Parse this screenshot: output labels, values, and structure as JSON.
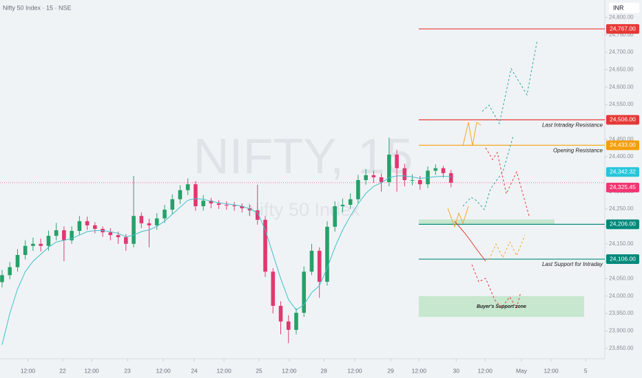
{
  "chart_data": {
    "type": "candlestick",
    "title": "Nifty 50 Index · 15 · NSE",
    "currency": "INR",
    "watermark": "NIFTY, 15",
    "watermark_sub": "Nifty 50 Index",
    "xlim": [
      -0.8,
      233.6
    ],
    "ylim": [
      23820,
      24850
    ],
    "xticks": [
      {
        "value": 10,
        "label": "12:00"
      },
      {
        "value": 23.5,
        "label": "22"
      },
      {
        "value": 34.7,
        "label": "12:00"
      },
      {
        "value": 48.6,
        "label": "23"
      },
      {
        "value": 62.5,
        "label": "12:00"
      },
      {
        "value": 74.5,
        "label": "24"
      },
      {
        "value": 86,
        "label": "12:00"
      },
      {
        "value": 99.6,
        "label": "25"
      },
      {
        "value": 111.3,
        "label": "12:00"
      },
      {
        "value": 124.7,
        "label": "28"
      },
      {
        "value": 136.7,
        "label": "12:00"
      },
      {
        "value": 150.6,
        "label": "29"
      },
      {
        "value": 161.6,
        "label": "12:00"
      },
      {
        "value": 176,
        "label": "30"
      },
      {
        "value": 187.2,
        "label": "12:00"
      },
      {
        "value": 201.3,
        "label": "May"
      },
      {
        "value": 212.8,
        "label": "12:00"
      },
      {
        "value": 226.2,
        "label": "5"
      }
    ],
    "yticks": [
      {
        "value": 23850,
        "label": "23,850.00"
      },
      {
        "value": 23900,
        "label": "23,900.00"
      },
      {
        "value": 23950,
        "label": "23,950.00"
      },
      {
        "value": 24000,
        "label": "24,000.00"
      },
      {
        "value": 24050,
        "label": "24,050.00"
      },
      {
        "value": 24100,
        "label": "24,100.00"
      },
      {
        "value": 24150,
        "label": "24,150.00"
      },
      {
        "value": 24200,
        "label": "24,200.00"
      },
      {
        "value": 24250,
        "label": "24,250.00"
      },
      {
        "value": 24300,
        "label": "24,300.00"
      },
      {
        "value": 24350,
        "label": "24,350.00"
      },
      {
        "value": 24400,
        "label": "24,400.00"
      },
      {
        "value": 24450,
        "label": "24,450.00"
      },
      {
        "value": 24500,
        "label": "24,500.00"
      },
      {
        "value": 24550,
        "label": "24,550.00"
      },
      {
        "value": 24600,
        "label": "24,600.00"
      },
      {
        "value": 24650,
        "label": "24,650.00"
      },
      {
        "value": 24700,
        "label": "24,700.00"
      },
      {
        "value": 24750,
        "label": "24,750.00"
      },
      {
        "value": 24800,
        "label": "24,800.00"
      }
    ],
    "up_color": "#26a169",
    "down_color": "#e0386f",
    "candles": {
      "x": [
        0,
        3,
        6,
        9,
        12,
        15,
        18,
        21,
        24,
        27,
        30,
        33,
        36,
        39,
        42,
        45,
        48,
        51,
        54,
        57,
        60,
        63,
        66,
        69,
        72,
        75,
        78,
        81,
        84,
        87,
        90,
        93,
        96,
        99,
        102,
        105,
        108,
        111,
        114,
        117,
        120,
        123,
        126,
        129,
        132,
        135,
        138,
        141,
        144,
        147,
        150,
        153,
        156,
        159,
        162,
        165,
        168,
        171,
        174
      ],
      "open": [
        24040,
        24060,
        24083,
        24118,
        24144,
        24150,
        24144,
        24173,
        24189,
        24160,
        24187,
        24215,
        24203,
        24193,
        24183,
        24175,
        24169,
        24150,
        24230,
        24209,
        24203,
        24223,
        24248,
        24278,
        24304,
        24321,
        24258,
        24274,
        24266,
        24262,
        24260,
        24258,
        24252,
        24246,
        24219,
        24070,
        23972,
        23927,
        23903,
        23952,
        24070,
        24130,
        24041,
        24199,
        24258,
        24262,
        24278,
        24333,
        24347,
        24341,
        24327,
        24406,
        24367,
        24333,
        24333,
        24321,
        24360,
        24367,
        24353
      ],
      "high": [
        24075,
        24098,
        24135,
        24160,
        24168,
        24165,
        24188,
        24210,
        24200,
        24200,
        24230,
        24228,
        24212,
        24200,
        24195,
        24185,
        24178,
        24345,
        24240,
        24222,
        24238,
        24262,
        24292,
        24318,
        24338,
        24330,
        24290,
        24282,
        24275,
        24272,
        24270,
        24266,
        24262,
        24320,
        24230,
        24080,
        23985,
        23945,
        23965,
        24085,
        24150,
        24140,
        24215,
        24272,
        24280,
        24295,
        24348,
        24365,
        24360,
        24352,
        24455,
        24420,
        24380,
        24350,
        24345,
        24372,
        24378,
        24374,
        24362
      ],
      "low": [
        24025,
        24048,
        24070,
        24105,
        24130,
        24128,
        24130,
        24160,
        24100,
        24150,
        24175,
        24190,
        24180,
        24170,
        24160,
        24150,
        24130,
        24140,
        24195,
        24140,
        24190,
        24210,
        24235,
        24265,
        24290,
        24245,
        24245,
        24252,
        24250,
        24248,
        24245,
        24240,
        24230,
        24205,
        24055,
        23950,
        23890,
        23865,
        23890,
        23940,
        24060,
        23995,
        24030,
        24185,
        24240,
        24250,
        24265,
        24320,
        24325,
        24300,
        24315,
        24300,
        24315,
        24318,
        24305,
        24310,
        24348,
        24340,
        24312
      ],
      "close": [
        24060,
        24083,
        24118,
        24144,
        24150,
        24144,
        24173,
        24189,
        24160,
        24187,
        24215,
        24203,
        24193,
        24183,
        24175,
        24169,
        24150,
        24230,
        24209,
        24203,
        24223,
        24248,
        24278,
        24304,
        24321,
        24258,
        24274,
        24266,
        24262,
        24260,
        24258,
        24252,
        24246,
        24219,
        24070,
        23972,
        23927,
        23903,
        23952,
        24070,
        24130,
        24041,
        24199,
        24258,
        24262,
        24278,
        24333,
        24347,
        24341,
        24327,
        24406,
        24367,
        24333,
        24333,
        24321,
        24360,
        24367,
        24353,
        24325.45
      ]
    },
    "ma": {
      "color": "#3dbfc9",
      "values": [
        23860,
        23950,
        24020,
        24070,
        24100,
        24120,
        24140,
        24155,
        24160,
        24165,
        24175,
        24185,
        24188,
        24188,
        24185,
        24180,
        24170,
        24175,
        24185,
        24190,
        24200,
        24215,
        24235,
        24255,
        24275,
        24280,
        24278,
        24272,
        24268,
        24265,
        24262,
        24258,
        24250,
        24240,
        24190,
        24120,
        24050,
        23990,
        23960,
        23975,
        24010,
        24030,
        24080,
        24140,
        24190,
        24230,
        24265,
        24295,
        24315,
        24325,
        24340,
        24345,
        24345,
        24342,
        24338,
        24340,
        24343,
        24344,
        24342.32
      ]
    },
    "levels": [
      {
        "value": 24767,
        "label": "24,767.00",
        "color": "#e53935",
        "x_start": 161.5
      },
      {
        "value": 24506,
        "label": "24,506.00",
        "color": "#e53935",
        "x_start": 161.5,
        "text": "Last Intraday Resistance"
      },
      {
        "value": 24433,
        "label": "24,433.00",
        "color": "#f59e0b",
        "x_start": 161.5,
        "text": "Opening Resistance"
      },
      {
        "value": 24206,
        "label": "24,206.00",
        "color": "#00897b",
        "x_start": 161.5
      },
      {
        "value": 24106,
        "label": "24,106.00",
        "color": "#00897b",
        "x_start": 161.5,
        "text": "Last Support for Intraday"
      }
    ],
    "price_tags": [
      {
        "value": 24342.32,
        "label": "24,342.32",
        "color": "#26c6da"
      },
      {
        "value": 24325.45,
        "label": "24,325.45",
        "color": "#f23672"
      }
    ],
    "zones": [
      {
        "top": 24220,
        "bottom": 24206,
        "x0": 161.5,
        "x1": 214.1
      },
      {
        "top": 24000,
        "bottom": 23940,
        "x0": 161.5,
        "x1": 225.6,
        "label": "Buyer's Support zone"
      }
    ]
  }
}
